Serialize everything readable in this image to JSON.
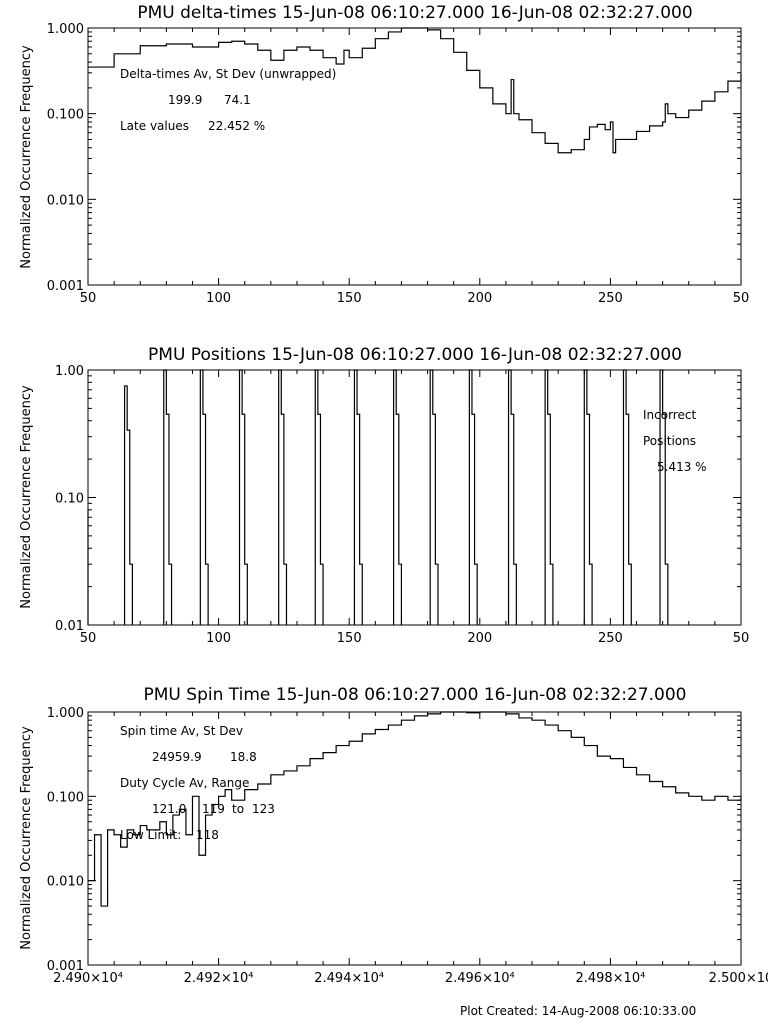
{
  "footer": "Plot Created: 14-Aug-2008 06:10:33.00",
  "chart_data": [
    {
      "type": "line",
      "title": "PMU delta-times 15-Jun-08 06:10:27.000 16-Jun-08 02:32:27.000",
      "ylabel": "Normalized Occurrence Frequency",
      "xlabel": "",
      "yscale": "log",
      "xlim": [
        50,
        300
      ],
      "ylim": [
        0.001,
        1.0
      ],
      "xticks": [
        "50",
        "100",
        "150",
        "200",
        "250",
        "50"
      ],
      "yticks": [
        "1.000",
        "0.100",
        "0.010",
        "0.001"
      ],
      "annotations": [
        "Delta-times Av, St Dev (unwrapped)",
        "199.9",
        "74.1",
        "Late values",
        "22.452 %"
      ],
      "series": [
        {
          "x": [
            50,
            60,
            70,
            80,
            90,
            100,
            105,
            110,
            115,
            120,
            125,
            130,
            135,
            140,
            145,
            148,
            150,
            155,
            160,
            165,
            170,
            175,
            180,
            185,
            190,
            195,
            200,
            205,
            210,
            212,
            213,
            215,
            220,
            225,
            230,
            235,
            240,
            242,
            245,
            248,
            250,
            251,
            252,
            255,
            260,
            265,
            270,
            271,
            272,
            275,
            280,
            285,
            290,
            295,
            300
          ],
          "y": [
            0.35,
            0.5,
            0.62,
            0.65,
            0.6,
            0.68,
            0.7,
            0.65,
            0.55,
            0.42,
            0.55,
            0.6,
            0.55,
            0.45,
            0.38,
            0.55,
            0.45,
            0.58,
            0.75,
            0.9,
            1.0,
            1.0,
            0.95,
            0.75,
            0.52,
            0.32,
            0.2,
            0.13,
            0.1,
            0.25,
            0.1,
            0.085,
            0.06,
            0.045,
            0.035,
            0.038,
            0.05,
            0.07,
            0.075,
            0.065,
            0.08,
            0.035,
            0.05,
            0.05,
            0.062,
            0.072,
            0.08,
            0.13,
            0.1,
            0.09,
            0.11,
            0.14,
            0.18,
            0.24,
            0.29
          ]
        }
      ]
    },
    {
      "type": "line",
      "title": "PMU Positions 15-Jun-08 06:10:27.000 16-Jun-08 02:32:27.000",
      "ylabel": "Normalized Occurrence Frequency",
      "xlabel": "",
      "yscale": "log",
      "xlim": [
        50,
        300
      ],
      "ylim": [
        0.01,
        1.0
      ],
      "xticks": [
        "50",
        "100",
        "150",
        "200",
        "250",
        "50"
      ],
      "yticks": [
        "1.00",
        "0.10",
        "0.01"
      ],
      "annotations": [
        "Incorrect",
        "Positions",
        "5.413 %"
      ],
      "series": [
        {
          "peaks": [
            {
              "x": 65,
              "y": 0.75
            },
            {
              "x": 80,
              "y": 1.0
            },
            {
              "x": 94,
              "y": 1.0
            },
            {
              "x": 109,
              "y": 1.0
            },
            {
              "x": 124,
              "y": 1.0
            },
            {
              "x": 138,
              "y": 1.0
            },
            {
              "x": 153,
              "y": 1.0
            },
            {
              "x": 168,
              "y": 1.0
            },
            {
              "x": 182,
              "y": 1.0
            },
            {
              "x": 197,
              "y": 1.0
            },
            {
              "x": 212,
              "y": 1.0
            },
            {
              "x": 226,
              "y": 1.0
            },
            {
              "x": 241,
              "y": 1.0
            },
            {
              "x": 256,
              "y": 1.0
            },
            {
              "x": 270,
              "y": 1.0
            }
          ]
        }
      ]
    },
    {
      "type": "line",
      "title": "PMU Spin Time 15-Jun-08 06:10:27.000 16-Jun-08 02:32:27.000",
      "ylabel": "Normalized Occurrence Frequency",
      "xlabel": "",
      "yscale": "log",
      "xlim": [
        24900,
        25000
      ],
      "ylim": [
        0.001,
        1.0
      ],
      "xticks": [
        "2.490×10⁴",
        "2.492×10⁴",
        "2.494×10⁴",
        "2.496×10⁴",
        "2.498×10⁴",
        "2.500×10"
      ],
      "yticks": [
        "1.000",
        "0.100",
        "0.010",
        "0.001"
      ],
      "annotations": [
        "Spin time Av, St Dev",
        "24959.9",
        "18.8",
        "Duty Cycle Av, Range",
        "121.0",
        "119",
        "to",
        "123",
        "Low Limit:",
        "118"
      ],
      "series": [
        {
          "x": [
            24900,
            24901,
            24902,
            24903,
            24904,
            24905,
            24906,
            24907,
            24908,
            24909,
            24910,
            24911,
            24912,
            24913,
            24914,
            24915,
            24916,
            24917,
            24918,
            24919,
            24920,
            24921,
            24922,
            24924,
            24926,
            24928,
            24930,
            24932,
            24934,
            24936,
            24938,
            24940,
            24942,
            24944,
            24946,
            24948,
            24950,
            24952,
            24954,
            24956,
            24958,
            24960,
            24962,
            24964,
            24966,
            24968,
            24970,
            24972,
            24974,
            24976,
            24978,
            24980,
            24982,
            24984,
            24986,
            24988,
            24990,
            24992,
            24994,
            24996,
            24998,
            25000
          ],
          "y": [
            0.01,
            0.035,
            0.005,
            0.04,
            0.035,
            0.025,
            0.04,
            0.035,
            0.045,
            0.04,
            0.04,
            0.05,
            0.035,
            0.06,
            0.07,
            0.035,
            0.1,
            0.02,
            0.06,
            0.08,
            0.1,
            0.12,
            0.09,
            0.12,
            0.14,
            0.18,
            0.2,
            0.23,
            0.28,
            0.33,
            0.4,
            0.45,
            0.55,
            0.62,
            0.7,
            0.8,
            0.9,
            0.95,
            1.0,
            1.0,
            0.98,
            1.0,
            1.0,
            0.95,
            0.85,
            0.8,
            0.7,
            0.6,
            0.5,
            0.4,
            0.3,
            0.28,
            0.22,
            0.18,
            0.15,
            0.13,
            0.11,
            0.1,
            0.09,
            0.1,
            0.09,
            0.1
          ]
        }
      ]
    }
  ]
}
